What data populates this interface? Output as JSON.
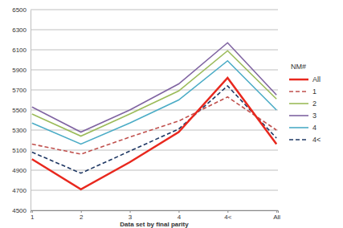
{
  "chart_data": {
    "type": "line",
    "x_label": "Data set by final parity",
    "legend_title": "NM#",
    "categories": [
      "1",
      "2",
      "3",
      "4",
      "4<",
      "All"
    ],
    "series": [
      {
        "name": "All",
        "color": "#e8281e",
        "line_style": "solid",
        "values": [
          5010,
          4710,
          4980,
          5280,
          5820,
          5160
        ]
      },
      {
        "name": "1",
        "color": "#c0504d",
        "line_style": "dashed",
        "values": [
          5160,
          5060,
          5230,
          5390,
          5630,
          5300
        ]
      },
      {
        "name": "2",
        "color": "#9bbb59",
        "line_style": "solid",
        "values": [
          5460,
          5240,
          5460,
          5690,
          6090,
          5610
        ]
      },
      {
        "name": "3",
        "color": "#8064a2",
        "line_style": "solid",
        "values": [
          5530,
          5280,
          5500,
          5760,
          6170,
          5650
        ]
      },
      {
        "name": "4",
        "color": "#4bacc6",
        "line_style": "solid",
        "values": [
          5370,
          5160,
          5370,
          5600,
          5990,
          5500
        ]
      },
      {
        "name": "4<",
        "color": "#1f3864",
        "line_style": "dashed",
        "values": [
          5080,
          4870,
          5090,
          5310,
          5740,
          5220
        ]
      }
    ],
    "ylim": [
      4500,
      6500
    ],
    "yticks": [
      4500,
      4700,
      4900,
      5100,
      5300,
      5500,
      5700,
      5900,
      6100,
      6300,
      6500
    ],
    "grid": true,
    "legend": "right"
  }
}
